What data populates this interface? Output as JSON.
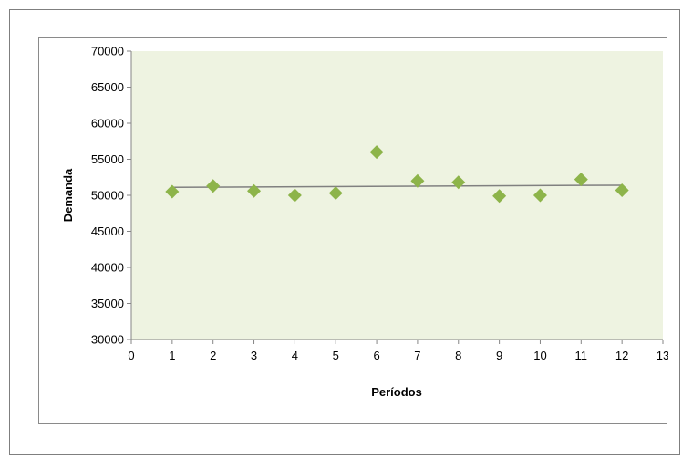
{
  "chart_data": {
    "type": "scatter",
    "title": "",
    "xlabel": "Períodos",
    "ylabel": "Demanda",
    "xlim": [
      0,
      13
    ],
    "ylim": [
      30000,
      70000
    ],
    "x_ticks": [
      0,
      1,
      2,
      3,
      4,
      5,
      6,
      7,
      8,
      9,
      10,
      11,
      12,
      13
    ],
    "y_ticks": [
      30000,
      35000,
      40000,
      45000,
      50000,
      55000,
      60000,
      65000,
      70000
    ],
    "grid": false,
    "legend": "none",
    "marker": "diamond",
    "series": [
      {
        "x": [
          1,
          2,
          3,
          4,
          5,
          6,
          7,
          8,
          9,
          10,
          11,
          12
        ],
        "y": [
          50500,
          51300,
          50600,
          50000,
          50300,
          56000,
          52000,
          51800,
          49900,
          50000,
          52200,
          50700
        ]
      }
    ],
    "trendline": {
      "x": [
        1,
        12
      ],
      "y": [
        51100,
        51400
      ]
    },
    "colors": {
      "plot_background": "#eef3e1",
      "marker": "#8db44a",
      "trendline": "#808080"
    }
  }
}
